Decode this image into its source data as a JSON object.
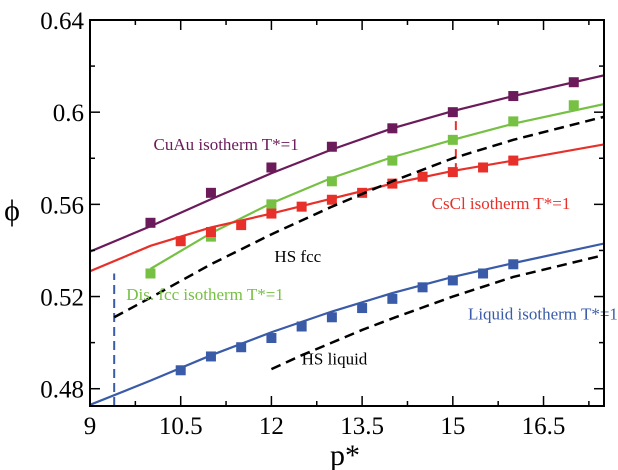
{
  "chart_data": {
    "type": "line",
    "xlabel": "p*",
    "ylabel": "ϕ",
    "xlim": [
      9,
      17.5
    ],
    "ylim": [
      0.4725,
      0.64
    ],
    "x_ticks": [
      9,
      10.5,
      12,
      13.5,
      15,
      16.5
    ],
    "x_tick_labels": [
      "9",
      "10.5",
      "12",
      "13.5",
      "15",
      "16.5"
    ],
    "y_ticks": [
      0.48,
      0.52,
      0.56,
      0.6,
      0.64
    ],
    "y_tick_labels": [
      "0.48",
      "0.52",
      "0.56",
      "0.6",
      "0.64"
    ],
    "series": [
      {
        "name": "CuAu isotherm T*=1",
        "color": "#6b1a5a",
        "line": {
          "x": [
            9,
            10,
            11,
            12,
            13,
            14,
            15,
            16,
            17.5
          ],
          "y": [
            0.5395,
            0.5505,
            0.5622,
            0.5735,
            0.5838,
            0.593,
            0.6005,
            0.607,
            0.616
          ]
        },
        "points": {
          "x": [
            10,
            11,
            12,
            13,
            14,
            15,
            16,
            17
          ],
          "y": [
            0.552,
            0.565,
            0.576,
            0.585,
            0.593,
            0.6,
            0.607,
            0.613
          ]
        }
      },
      {
        "name": "Dis. fcc isotherm T*=1",
        "color": "#76c043",
        "line": {
          "x": [
            10,
            11,
            12,
            13,
            14,
            15,
            16,
            17.5
          ],
          "y": [
            0.532,
            0.5475,
            0.5605,
            0.5715,
            0.5805,
            0.588,
            0.595,
            0.6035
          ]
        },
        "points": {
          "x": [
            10,
            11,
            12,
            13,
            14,
            15,
            16,
            17
          ],
          "y": [
            0.53,
            0.546,
            0.56,
            0.57,
            0.579,
            0.588,
            0.596,
            0.603
          ]
        }
      },
      {
        "name": "CsCl isotherm T*=1",
        "color": "#e8302a",
        "line": {
          "x": [
            9,
            10,
            11,
            12,
            13,
            14,
            15,
            16,
            17.5
          ],
          "y": [
            0.531,
            0.542,
            0.55,
            0.556,
            0.5625,
            0.569,
            0.5745,
            0.579,
            0.586
          ]
        },
        "points": {
          "x": [
            10.5,
            11,
            11.5,
            12,
            12.5,
            13,
            13.5,
            14,
            14.5,
            15,
            15.5,
            16
          ],
          "y": [
            0.544,
            0.548,
            0.551,
            0.556,
            0.559,
            0.562,
            0.565,
            0.569,
            0.572,
            0.574,
            0.576,
            0.579
          ]
        }
      },
      {
        "name": "Liquid isotherm T*=1",
        "color": "#3a5ba8",
        "line": {
          "x": [
            9,
            10,
            11,
            12,
            13,
            14,
            15,
            16,
            17.5
          ],
          "y": [
            0.473,
            0.4835,
            0.4945,
            0.5045,
            0.5135,
            0.5215,
            0.5285,
            0.5345,
            0.543
          ]
        },
        "points": {
          "x": [
            10.5,
            11,
            11.5,
            12,
            12.5,
            13,
            13.5,
            14,
            14.5,
            15,
            15.5,
            16
          ],
          "y": [
            0.488,
            0.494,
            0.498,
            0.502,
            0.507,
            0.511,
            0.515,
            0.519,
            0.524,
            0.527,
            0.53,
            0.534
          ]
        }
      },
      {
        "name": "HS fcc",
        "color": "#000000",
        "dashed": true,
        "line": {
          "x": [
            9.4,
            10,
            11,
            12,
            13,
            14,
            15,
            16,
            17.5
          ],
          "y": [
            0.511,
            0.5195,
            0.534,
            0.547,
            0.559,
            0.57,
            0.58,
            0.588,
            0.598
          ]
        }
      },
      {
        "name": "HS liquid",
        "color": "#000000",
        "dashed": true,
        "line": {
          "x": [
            12,
            12.5,
            13,
            13.5,
            14,
            15,
            16,
            17.5
          ],
          "y": [
            0.4885,
            0.4945,
            0.5,
            0.5055,
            0.5105,
            0.52,
            0.5285,
            0.538
          ]
        }
      }
    ],
    "tie_lines": [
      {
        "color": "#3a5ba8",
        "x": 9.4,
        "y": [
          0.4725,
          0.53
        ]
      },
      {
        "color": "#e8302a",
        "x": 15.05,
        "y": [
          0.574,
          0.599
        ]
      }
    ],
    "annotations": [
      {
        "text": "CuAu isotherm T*=1",
        "x": 10.05,
        "y": 0.5835,
        "color": "#6b1a5a"
      },
      {
        "text": "CsCl isotherm T*=1",
        "x": 14.65,
        "y": 0.558,
        "color": "#e8302a"
      },
      {
        "text": "HS fcc",
        "x": 12.05,
        "y": 0.535,
        "color": "#000000"
      },
      {
        "text": "Dis. fcc isotherm T*=1",
        "x": 9.6,
        "y": 0.5185,
        "color": "#76c043"
      },
      {
        "text": "Liquid isotherm T*=1",
        "x": 15.25,
        "y": 0.51,
        "color": "#3a5ba8"
      },
      {
        "text": "HS liquid",
        "x": 12.5,
        "y": 0.4905,
        "color": "#000000"
      }
    ]
  }
}
